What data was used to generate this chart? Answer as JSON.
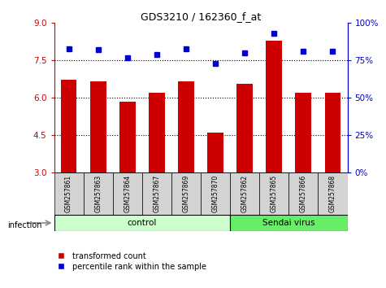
{
  "title": "GDS3210 / 162360_f_at",
  "samples": [
    "GSM257861",
    "GSM257863",
    "GSM257864",
    "GSM257867",
    "GSM257869",
    "GSM257870",
    "GSM257862",
    "GSM257865",
    "GSM257866",
    "GSM257868"
  ],
  "bar_values": [
    6.72,
    6.65,
    5.85,
    6.2,
    6.65,
    4.6,
    6.55,
    8.3,
    6.2,
    6.2
  ],
  "percentile_values": [
    83,
    82,
    77,
    79,
    83,
    73,
    80,
    93,
    81,
    81
  ],
  "bar_color": "#cc0000",
  "percentile_color": "#0000cc",
  "ylim_left": [
    3,
    9
  ],
  "ylim_right": [
    0,
    100
  ],
  "yticks_left": [
    3,
    4.5,
    6,
    7.5,
    9
  ],
  "yticks_right": [
    0,
    25,
    50,
    75,
    100
  ],
  "ytick_labels_right": [
    "0%",
    "25%",
    "50%",
    "75%",
    "100%"
  ],
  "n_control": 6,
  "n_sendai": 4,
  "control_color": "#ccffcc",
  "sendai_color": "#66ee66",
  "label_bar": "transformed count",
  "label_percentile": "percentile rank within the sample",
  "infection_label": "infection",
  "control_label": "control",
  "sendai_label": "Sendai virus",
  "bar_width": 0.55,
  "bg_color": "#ffffff"
}
